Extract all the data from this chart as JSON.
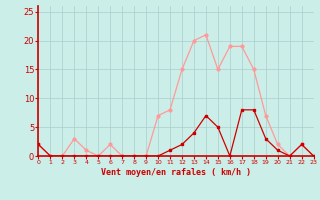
{
  "hours": [
    0,
    1,
    2,
    3,
    4,
    5,
    6,
    7,
    8,
    9,
    10,
    11,
    12,
    13,
    14,
    15,
    16,
    17,
    18,
    19,
    20,
    21,
    22,
    23
  ],
  "wind_avg": [
    2,
    0,
    0,
    0,
    0,
    0,
    0,
    0,
    0,
    0,
    0,
    1,
    2,
    4,
    7,
    5,
    0,
    8,
    8,
    3,
    1,
    0,
    2,
    0
  ],
  "wind_gust": [
    2,
    0,
    0,
    3,
    1,
    0,
    2,
    0,
    0,
    0,
    7,
    8,
    15,
    20,
    21,
    15,
    19,
    19,
    15,
    7,
    2,
    0,
    2,
    0
  ],
  "bg_color": "#cceee8",
  "grid_color": "#aacccc",
  "avg_color": "#cc0000",
  "gust_color": "#ff9999",
  "xlabel": "Vent moyen/en rafales ( km/h )",
  "tick_color": "#cc0000",
  "ylim": [
    0,
    26
  ],
  "yticks": [
    0,
    5,
    10,
    15,
    20,
    25
  ],
  "spine_color": "#cc0000"
}
